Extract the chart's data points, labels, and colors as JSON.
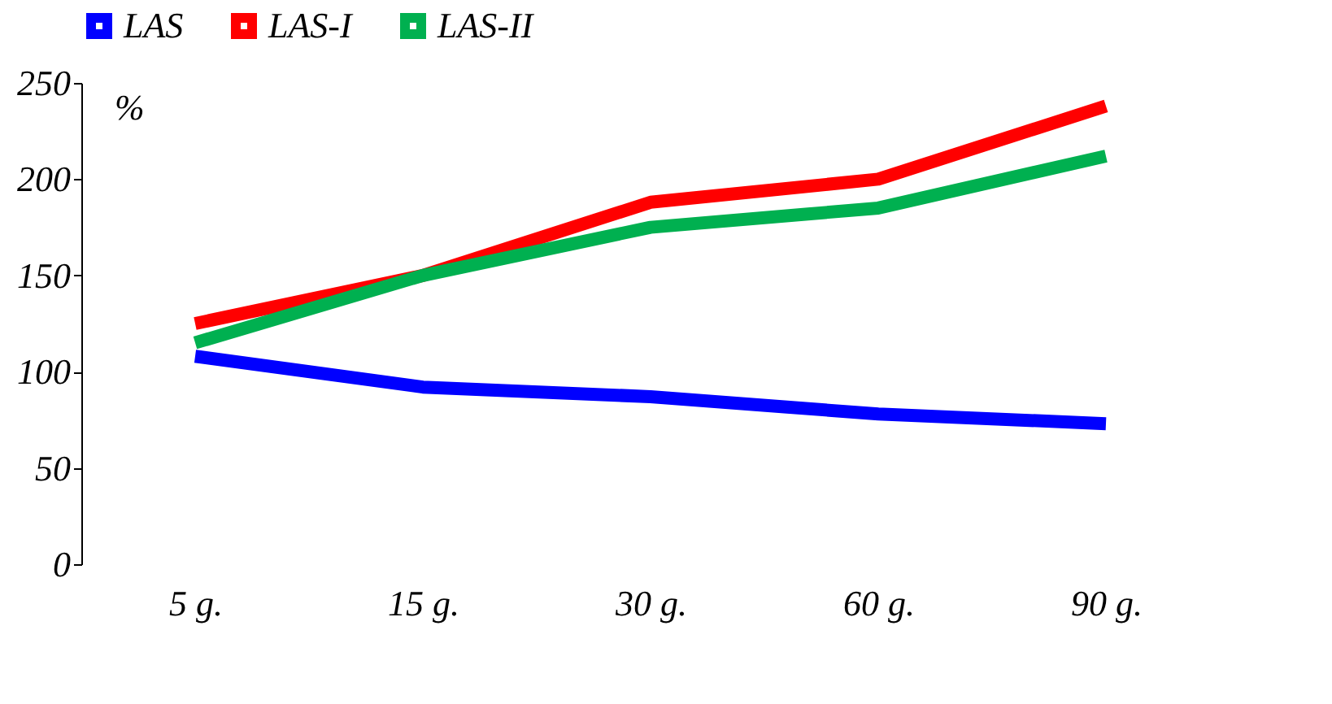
{
  "chart_data": {
    "type": "line",
    "ylabel": "%",
    "categories": [
      "5 g.",
      "15 g.",
      "30 g.",
      "60 g.",
      "90 g."
    ],
    "series": [
      {
        "name": "LAS",
        "color": "#0000ff",
        "values": [
          108,
          92,
          87,
          78,
          73
        ]
      },
      {
        "name": "LAS-I",
        "color": "#ff0000",
        "values": [
          125,
          150,
          188,
          200,
          238
        ]
      },
      {
        "name": "LAS-II",
        "color": "#00b050",
        "values": [
          115,
          150,
          175,
          185,
          212
        ]
      }
    ],
    "ylim": [
      0,
      250
    ],
    "yticks": [
      0,
      50,
      100,
      150,
      200,
      250
    ],
    "grid": false,
    "legend": "top",
    "marker": "none",
    "line_style": "solid"
  }
}
